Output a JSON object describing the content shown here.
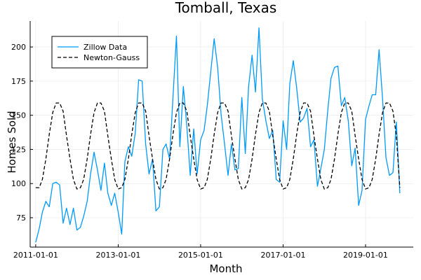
{
  "chart_data": {
    "type": "line",
    "title": "Tomball, Texas",
    "xlabel": "Month",
    "ylabel": "Homes Sold",
    "x_ticks": [
      "2011-01-01",
      "2013-01-01",
      "2015-01-01",
      "2017-01-01",
      "2019-01-01"
    ],
    "x_range": [
      "2010-11-13",
      "2020-02-28"
    ],
    "y_ticks": [
      75,
      100,
      125,
      150,
      175,
      200
    ],
    "ylim": [
      53.5,
      219
    ],
    "grid": true,
    "legend_position": "top-left",
    "series": [
      {
        "name": "Zillow Data",
        "style": "solid",
        "color": "#009AFA",
        "start": "2011-01",
        "values": [
          57,
          67,
          79,
          87,
          83,
          100,
          101,
          99,
          71,
          82,
          70,
          82,
          66,
          68,
          76,
          87,
          107,
          123,
          110,
          95,
          115,
          93,
          84,
          93,
          79,
          63,
          116,
          127,
          120,
          137,
          176,
          175,
          129,
          107,
          118,
          80,
          83,
          125,
          129,
          118,
          163,
          208,
          127,
          171,
          142,
          106,
          140,
          107,
          132,
          139,
          157,
          182,
          206,
          185,
          151,
          129,
          106,
          129,
          110,
          111,
          163,
          122,
          171,
          194,
          167,
          214,
          162,
          146,
          133,
          139,
          103,
          101,
          146,
          125,
          173,
          190,
          170,
          145,
          148,
          155,
          127,
          132,
          98,
          111,
          125,
          154,
          177,
          185,
          186,
          157,
          163,
          146,
          113,
          126,
          84,
          95,
          147,
          157,
          165,
          165,
          198,
          162,
          119,
          106,
          108,
          145,
          93
        ]
      },
      {
        "name": "Newton-Gauss",
        "style": "dashed",
        "color": "#000000",
        "start": "2011-01",
        "values": [
          97,
          97,
          103,
          118,
          136,
          152,
          159,
          159,
          153,
          135,
          118,
          103,
          96,
          97,
          103,
          118,
          136,
          152,
          159,
          159,
          153,
          135,
          118,
          103,
          96,
          97,
          103,
          118,
          136,
          152,
          159,
          159,
          153,
          135,
          118,
          103,
          96,
          97,
          103,
          118,
          136,
          152,
          159,
          159,
          153,
          135,
          118,
          103,
          96,
          97,
          103,
          118,
          136,
          152,
          159,
          159,
          153,
          135,
          118,
          103,
          96,
          97,
          103,
          118,
          136,
          152,
          159,
          159,
          153,
          135,
          118,
          103,
          96,
          97,
          103,
          118,
          136,
          152,
          159,
          159,
          153,
          135,
          118,
          103,
          96,
          97,
          103,
          118,
          136,
          152,
          159,
          159,
          153,
          135,
          118,
          103,
          96,
          97,
          103,
          118,
          136,
          152,
          159,
          159,
          153,
          135,
          97
        ]
      }
    ]
  }
}
